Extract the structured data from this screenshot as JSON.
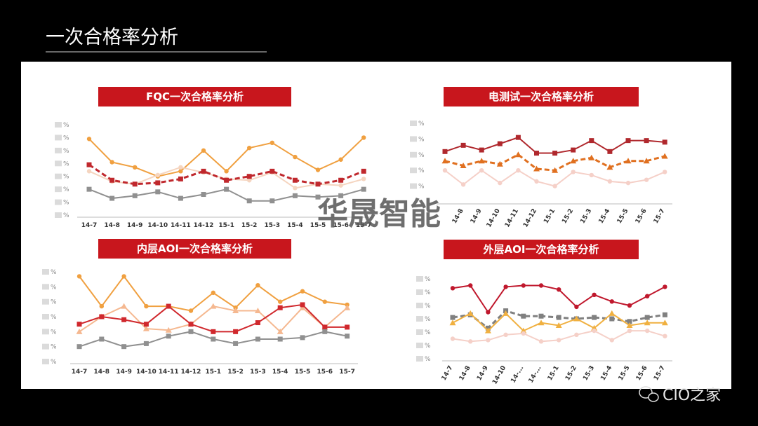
{
  "slide_title": "一次合格率分析",
  "watermark": "华晟智能",
  "source": "CIO之家",
  "chart_data": [
    {
      "type": "line",
      "title": "FQC一次合格率分析",
      "categories": [
        "14-7",
        "14-8",
        "14-9",
        "14-10",
        "14-11",
        "14-12",
        "15-1",
        "15-2",
        "15-3",
        "15-4",
        "15-5",
        "15-6",
        "15-7"
      ],
      "ylim": [
        0,
        7
      ],
      "yticks": [
        {
          "value": 0,
          "label": "%"
        },
        {
          "value": 1,
          "label": "%"
        },
        {
          "value": 2,
          "label": "%"
        },
        {
          "value": 3,
          "label": "%"
        },
        {
          "value": 4,
          "label": "%"
        },
        {
          "value": 5,
          "label": "%"
        },
        {
          "value": 6,
          "label": "%"
        },
        {
          "value": 7,
          "label": "%"
        }
      ],
      "series": [
        {
          "color": "#f0a040",
          "marker": "circle",
          "values": [
            5.9,
            4.1,
            3.7,
            3.0,
            3.4,
            5.0,
            3.4,
            5.2,
            5.6,
            4.5,
            3.5,
            4.3,
            6.0
          ]
        },
        {
          "color": "#f5d5c0",
          "marker": "circle",
          "values": [
            3.4,
            2.6,
            2.4,
            3.1,
            3.7,
            3.3,
            2.8,
            2.7,
            3.3,
            2.1,
            2.4,
            2.3,
            2.8
          ]
        },
        {
          "color": "#c0282d",
          "marker": "square",
          "dashed": true,
          "values": [
            3.9,
            2.7,
            2.4,
            2.5,
            2.8,
            3.4,
            2.7,
            3.0,
            3.4,
            2.7,
            2.4,
            2.7,
            3.4
          ]
        },
        {
          "color": "#909090",
          "marker": "square",
          "values": [
            2.0,
            1.3,
            1.5,
            1.8,
            1.3,
            1.6,
            2.0,
            1.1,
            1.1,
            1.5,
            1.4,
            1.5,
            2.0
          ]
        }
      ]
    },
    {
      "type": "line",
      "title": "电测试一次合格率分析",
      "categories": [
        null,
        "14-8",
        "14-9",
        "14-10",
        "14-11",
        "14-12",
        "15-1",
        "15-2",
        "15-3",
        "15-4",
        "15-5",
        "15-6",
        "15-7"
      ],
      "ylim": [
        0,
        5
      ],
      "yticks": [
        {
          "value": 1,
          "label": "%"
        },
        {
          "value": 2,
          "label": "%"
        },
        {
          "value": 3,
          "label": "%"
        },
        {
          "value": 4,
          "label": "%"
        },
        {
          "value": 5,
          "label": "%"
        }
      ],
      "rotate_labels": true,
      "series": [
        {
          "color": "#b0282d",
          "marker": "square",
          "values": [
            3.2,
            3.6,
            3.3,
            3.7,
            4.1,
            3.1,
            3.1,
            3.3,
            3.9,
            3.2,
            3.9,
            3.9,
            3.8
          ]
        },
        {
          "color": "#e07020",
          "marker": "triangle",
          "dashed": true,
          "values": [
            2.6,
            2.3,
            2.6,
            2.4,
            3.0,
            2.1,
            2.0,
            2.6,
            2.8,
            2.2,
            2.6,
            2.6,
            2.9
          ]
        },
        {
          "color": "#f5d0c8",
          "marker": "circle",
          "values": [
            2.0,
            1.1,
            2.0,
            1.2,
            2.0,
            1.3,
            1.0,
            1.9,
            1.7,
            1.3,
            1.2,
            1.4,
            1.9
          ]
        }
      ]
    },
    {
      "type": "line",
      "title": "内层AOI一次合格率分析",
      "categories": [
        "14-7",
        "14-8",
        "14-9",
        "14-10",
        "14-11",
        "14-12",
        "15-1",
        "15-2",
        "15-3",
        "15-4",
        "15-5",
        "15-6",
        "15-7"
      ],
      "ylim": [
        0,
        6
      ],
      "yticks": [
        {
          "value": 0,
          "label": "%"
        },
        {
          "value": 1,
          "label": "%"
        },
        {
          "value": 2,
          "label": "%"
        },
        {
          "value": 3,
          "label": "%"
        },
        {
          "value": 4,
          "label": "%"
        },
        {
          "value": 5,
          "label": "%"
        },
        {
          "value": 6,
          "label": "%"
        }
      ],
      "series": [
        {
          "color": "#f0a040",
          "marker": "circle",
          "values": [
            5.7,
            3.7,
            5.7,
            3.7,
            3.7,
            3.4,
            4.6,
            3.6,
            5.1,
            4.0,
            4.7,
            4.0,
            3.8
          ]
        },
        {
          "color": "#f5b890",
          "marker": "triangle",
          "values": [
            2.0,
            3.0,
            3.7,
            2.2,
            2.1,
            2.5,
            3.7,
            3.4,
            3.4,
            2.0,
            3.6,
            2.3,
            3.6
          ]
        },
        {
          "color": "#d0282d",
          "marker": "square",
          "values": [
            2.5,
            3.0,
            2.8,
            2.5,
            3.7,
            2.5,
            2.0,
            2.0,
            2.6,
            3.6,
            3.8,
            2.3,
            2.3
          ]
        },
        {
          "color": "#909090",
          "marker": "square",
          "values": [
            1.0,
            1.5,
            1.0,
            1.2,
            1.7,
            2.0,
            1.5,
            1.2,
            1.5,
            1.5,
            1.6,
            2.0,
            1.7
          ]
        }
      ]
    },
    {
      "type": "line",
      "title": "外层AOI一次合格率分析",
      "categories": [
        "14-7",
        "14-8",
        "14-9",
        "14-10",
        "14-...",
        "14-...",
        "15-1",
        "15-2",
        "15-3",
        "15-4",
        "15-5",
        "15-6",
        "15-7"
      ],
      "ylim": [
        0,
        6
      ],
      "yticks": [
        {
          "value": 0,
          "label": "%"
        },
        {
          "value": 1,
          "label": "%"
        },
        {
          "value": 2,
          "label": "%"
        },
        {
          "value": 3,
          "label": "%"
        },
        {
          "value": 4,
          "label": "%"
        },
        {
          "value": 5,
          "label": "%"
        },
        {
          "value": 6,
          "label": "%"
        }
      ],
      "rotate_labels": true,
      "series": [
        {
          "color": "#c0182d",
          "marker": "circle",
          "values": [
            5.3,
            5.5,
            3.5,
            5.4,
            5.5,
            5.5,
            5.2,
            3.9,
            4.8,
            4.3,
            4.0,
            4.7,
            5.4
          ]
        },
        {
          "color": "#808080",
          "marker": "square",
          "dashed": true,
          "values": [
            3.1,
            3.3,
            2.3,
            3.6,
            3.2,
            3.2,
            3.1,
            3.0,
            3.1,
            3.0,
            2.8,
            3.1,
            3.3
          ]
        },
        {
          "color": "#f0b040",
          "marker": "triangle",
          "values": [
            2.7,
            3.4,
            2.1,
            3.4,
            2.1,
            2.7,
            2.5,
            3.0,
            2.3,
            3.4,
            2.5,
            2.7,
            2.7
          ]
        },
        {
          "color": "#f5d0c8",
          "marker": "circle",
          "values": [
            1.5,
            1.3,
            1.4,
            1.8,
            1.9,
            1.3,
            1.4,
            1.8,
            2.1,
            1.4,
            2.1,
            2.1,
            1.7
          ]
        }
      ]
    }
  ]
}
